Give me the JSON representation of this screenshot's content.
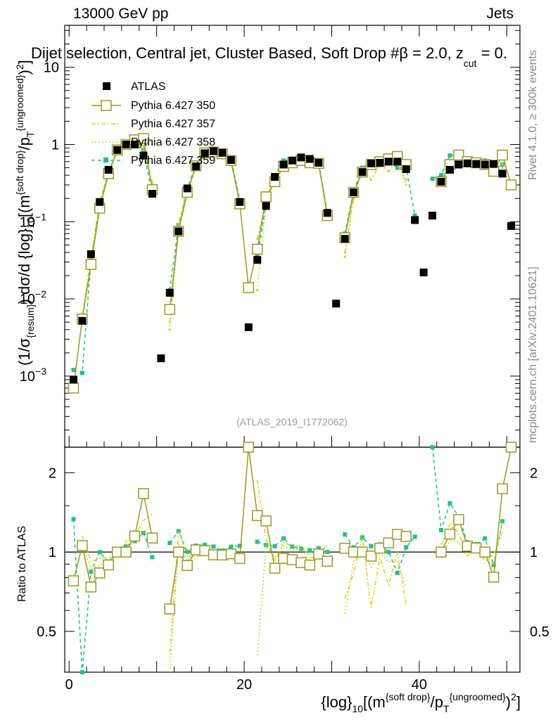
{
  "header": {
    "left": "13000 GeV pp",
    "right": "Jets"
  },
  "plot_title": "Dijet selection, Central jet, Cluster Based, Soft Drop #β = 2.0, z",
  "plot_title_sub": "cut",
  "plot_title_tail": " = 0.",
  "side_text": {
    "rivet": "Rivet 4.1.0, ≥ 300k events",
    "mcplots": "mcplots.cern.ch [arXiv:2401.10621]"
  },
  "analysis_ref": "(ATLAS_2019_I1772062)",
  "y_axis": {
    "main_label": "(1/σ{resum}) dσ/d {log}10[(m{soft drop}/pT{ungroomed})2]",
    "ratio_label": "Ratio to ATLAS",
    "main_ticks": [
      "10",
      "1",
      "10",
      "10",
      "10"
    ],
    "main_tick_exponents": [
      "",
      "",
      "−1",
      "−2",
      "−3"
    ],
    "ratio_ticks": [
      "2",
      "1",
      "0.5"
    ]
  },
  "x_axis": {
    "label": "{log}10[(m{soft drop}/pT{ungroomed})2]",
    "ticks": [
      "0",
      "20",
      "40"
    ]
  },
  "colors": {
    "atlas": "#000000",
    "p350": "#9a9a1e",
    "p357": "#d8d800",
    "p358": "#c8d020",
    "p359": "#17c489"
  },
  "chart_data": {
    "type": "scatter",
    "title": "Dijet selection, Central jet, Cluster Based, Soft Drop #β = 2.0, z_cut = 0.",
    "xlabel": "{log}10[(m{soft drop}/pT{ungroomed})2]",
    "ylabel": "(1/σ{resum}) dσ/d {log}10[(m{soft drop}/pT{ungroomed})2]",
    "xlim": [
      -0.5,
      51.5
    ],
    "ylim_main": [
      0.00012,
      35
    ],
    "yscale_main": "log",
    "ylim_ratio": [
      0.35,
      2.5
    ],
    "yscale_ratio": "log",
    "x": [
      0.5,
      1.5,
      2.5,
      3.5,
      4.5,
      5.5,
      6.5,
      7.5,
      8.5,
      9.5,
      10.5,
      11.5,
      12.5,
      13.5,
      14.5,
      15.5,
      16.5,
      17.5,
      18.5,
      19.5,
      20.5,
      21.5,
      22.5,
      23.5,
      24.5,
      25.5,
      26.5,
      27.5,
      28.5,
      29.5,
      30.5,
      31.5,
      32.5,
      33.5,
      34.5,
      35.5,
      36.5,
      37.5,
      38.5,
      39.5,
      40.5,
      41.5,
      42.5,
      43.5,
      44.5,
      45.5,
      46.5,
      47.5,
      48.5,
      49.5,
      50.5
    ],
    "series": [
      {
        "name": "ATLAS",
        "marker": "filled-square",
        "values": [
          0.0009,
          0.0052,
          0.038,
          0.18,
          0.47,
          0.85,
          1.0,
          1.0,
          0.72,
          0.23,
          0.0017,
          0.012,
          0.075,
          0.27,
          0.52,
          0.77,
          0.82,
          0.78,
          0.63,
          0.18,
          0.0043,
          0.032,
          0.16,
          0.38,
          0.55,
          0.62,
          0.68,
          0.65,
          0.58,
          0.13,
          0.0087,
          0.06,
          0.24,
          0.44,
          0.57,
          0.58,
          0.6,
          0.6,
          0.48,
          0.105,
          0.022,
          0.12,
          0.33,
          0.47,
          0.55,
          0.57,
          0.56,
          0.55,
          0.56,
          0.42,
          0.088
        ]
      },
      {
        "name": "Pythia 6.427 350",
        "marker": "open-square",
        "values": [
          0.0007,
          0.0055,
          0.028,
          0.15,
          0.42,
          0.85,
          1.0,
          1.15,
          1.2,
          0.26,
          null,
          0.0073,
          0.075,
          0.24,
          0.53,
          0.78,
          0.8,
          0.76,
          0.62,
          0.17,
          0.014,
          0.044,
          0.21,
          0.33,
          0.52,
          0.58,
          0.62,
          0.58,
          0.57,
          0.12,
          null,
          0.062,
          0.24,
          0.44,
          0.55,
          0.6,
          0.65,
          0.7,
          0.55,
          null,
          null,
          null,
          0.33,
          0.55,
          0.73,
          0.6,
          0.58,
          0.55,
          0.45,
          0.73,
          0.3
        ]
      },
      {
        "name": "Pythia 6.427 357",
        "marker": "dash-dot",
        "values": [
          null,
          0.006,
          0.035,
          0.17,
          0.45,
          0.82,
          1.1,
          1.15,
          0.95,
          0.32,
          null,
          0.005,
          0.09,
          0.26,
          0.5,
          0.75,
          0.8,
          0.74,
          0.6,
          0.18,
          null,
          0.06,
          0.18,
          0.35,
          0.6,
          0.65,
          0.72,
          0.62,
          0.55,
          0.14,
          null,
          0.04,
          0.2,
          0.5,
          0.35,
          0.55,
          0.45,
          0.6,
          0.3,
          null,
          null,
          null,
          0.35,
          0.6,
          0.65,
          0.55,
          0.6,
          0.5,
          0.55,
          0.5,
          null
        ]
      },
      {
        "name": "Pythia 6.427 358",
        "marker": "dotted",
        "values": [
          null,
          0.0055,
          0.033,
          0.16,
          0.44,
          0.83,
          1.05,
          1.1,
          0.85,
          0.3,
          null,
          0.004,
          0.08,
          0.25,
          0.52,
          0.76,
          0.79,
          0.75,
          0.6,
          0.17,
          null,
          0.013,
          0.17,
          0.36,
          0.58,
          0.63,
          0.7,
          0.6,
          0.55,
          0.13,
          null,
          0.035,
          0.22,
          0.46,
          0.5,
          0.58,
          0.55,
          0.55,
          0.35,
          null,
          null,
          null,
          0.32,
          0.52,
          0.6,
          0.55,
          0.58,
          0.52,
          0.5,
          0.55,
          null
        ]
      },
      {
        "name": "Pythia 6.427 359",
        "marker": "filled-circle-dashed",
        "values": [
          0.0012,
          0.0011,
          0.032,
          0.18,
          0.43,
          0.87,
          1.05,
          1.1,
          0.85,
          0.22,
          null,
          0.013,
          0.09,
          0.27,
          0.55,
          0.82,
          0.86,
          0.79,
          0.66,
          0.19,
          null,
          0.035,
          0.17,
          0.4,
          0.62,
          0.65,
          0.7,
          0.66,
          0.6,
          0.13,
          null,
          0.07,
          0.25,
          0.5,
          0.6,
          0.62,
          0.6,
          0.5,
          0.5,
          0.12,
          null,
          0.36,
          0.4,
          0.72,
          0.75,
          0.62,
          0.6,
          0.62,
          0.5,
          0.55,
          null
        ]
      }
    ]
  }
}
